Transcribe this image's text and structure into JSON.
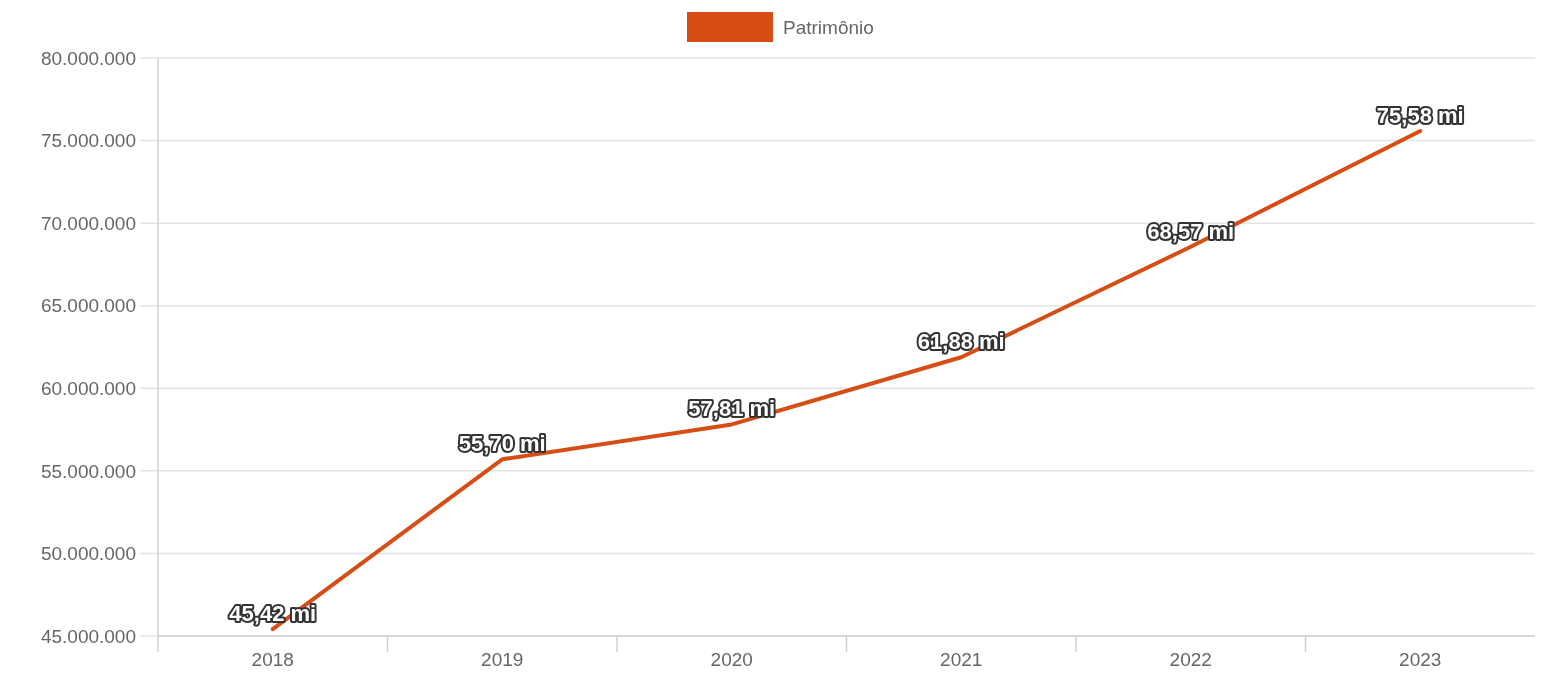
{
  "chart_data": {
    "type": "line",
    "categories": [
      "2018",
      "2019",
      "2020",
      "2021",
      "2022",
      "2023"
    ],
    "series": [
      {
        "name": "Patrimônio",
        "color": "#d64e16",
        "values": [
          45420000,
          55700000,
          57810000,
          61880000,
          68570000,
          75580000
        ]
      }
    ],
    "annotations": [
      {
        "text": "45,42 mi",
        "x": "2018",
        "y": 45420000
      },
      {
        "text": "55,70 mi",
        "x": "2019",
        "y": 55700000
      },
      {
        "text": "57,81 mi",
        "x": "2020",
        "y": 57810000
      },
      {
        "text": "61,88 mi",
        "x": "2021",
        "y": 61880000
      },
      {
        "text": "68,57 mi",
        "x": "2022",
        "y": 68570000
      },
      {
        "text": "75,58 mi",
        "x": "2023",
        "y": 75580000
      }
    ],
    "ylim": [
      45000000,
      80000000
    ],
    "yticks": [
      {
        "value": 45000000,
        "label": "45.000.000"
      },
      {
        "value": 50000000,
        "label": "50.000.000"
      },
      {
        "value": 55000000,
        "label": "55.000.000"
      },
      {
        "value": 60000000,
        "label": "60.000.000"
      },
      {
        "value": 65000000,
        "label": "65.000.000"
      },
      {
        "value": 70000000,
        "label": "70.000.000"
      },
      {
        "value": 75000000,
        "label": "75.000.000"
      },
      {
        "value": 80000000,
        "label": "80.000.000"
      }
    ],
    "grid": "y",
    "legend": "top",
    "marker": "none",
    "line_style": "solid"
  }
}
